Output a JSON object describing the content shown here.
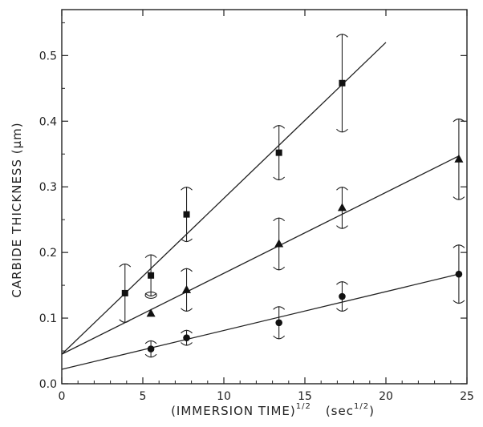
{
  "chart_data": {
    "type": "scatter",
    "xlabel": {
      "main": "(IMMERSION TIME)",
      "main_sup": "1/2",
      "unit_prefix": "(sec",
      "unit_sup": "1/2",
      "unit_suffix": ")"
    },
    "ylabel": "CARBIDE THICKNESS (μm)",
    "xlim": [
      0,
      25
    ],
    "ylim": [
      0,
      0.57
    ],
    "x_ticks": [
      "0",
      "5",
      "10",
      "15",
      "20",
      "25"
    ],
    "y_ticks": [
      "0.0",
      "0.1",
      "0.2",
      "0.3",
      "0.4",
      "0.5"
    ],
    "grid": false,
    "series": [
      {
        "marker": "square",
        "points": [
          {
            "x": 3.9,
            "y": 0.138,
            "err": 0.045
          },
          {
            "x": 5.5,
            "y": 0.165,
            "err": 0.032
          },
          {
            "x": 7.7,
            "y": 0.258,
            "err": 0.042
          },
          {
            "x": 13.4,
            "y": 0.352,
            "err": 0.042
          },
          {
            "x": 17.3,
            "y": 0.458,
            "err": 0.075
          }
        ],
        "fit": {
          "x": [
            0,
            20
          ],
          "y": [
            0.045,
            0.52
          ]
        }
      },
      {
        "marker": "triangle",
        "points": [
          {
            "x": 5.5,
            "y": 0.107,
            "err": 0.0
          },
          {
            "x": 7.7,
            "y": 0.143,
            "err": 0.033
          },
          {
            "x": 13.4,
            "y": 0.213,
            "err": 0.04
          },
          {
            "x": 17.3,
            "y": 0.268,
            "err": 0.032
          },
          {
            "x": 24.5,
            "y": 0.342,
            "err": 0.062
          }
        ],
        "fit": {
          "x": [
            0,
            24.5
          ],
          "y": [
            0.045,
            0.347
          ]
        }
      },
      {
        "marker": "circle",
        "points": [
          {
            "x": 5.5,
            "y": 0.053,
            "err": 0.013
          },
          {
            "x": 7.7,
            "y": 0.07,
            "err": 0.012
          },
          {
            "x": 13.4,
            "y": 0.093,
            "err": 0.025
          },
          {
            "x": 17.3,
            "y": 0.133,
            "err": 0.023
          },
          {
            "x": 24.5,
            "y": 0.167,
            "err": 0.045
          }
        ],
        "fit": {
          "x": [
            0,
            24.5
          ],
          "y": [
            0.022,
            0.167
          ]
        }
      }
    ]
  }
}
